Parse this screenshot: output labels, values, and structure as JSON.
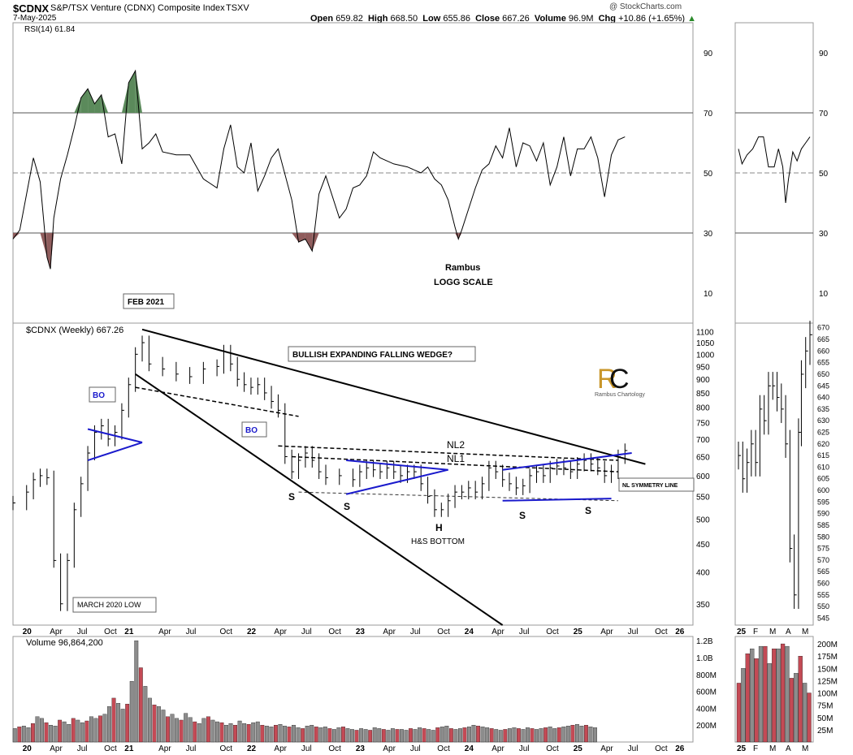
{
  "header": {
    "symbol": "$CDNX",
    "name": "S&P/TSX Venture (CDNX) Composite Index",
    "exchange": "TSXV",
    "date": "7-May-2025",
    "watermark": "@ StockCharts.com",
    "open_label": "Open",
    "open": "659.82",
    "high_label": "High",
    "high": "668.50",
    "low_label": "Low",
    "low": "655.86",
    "close_label": "Close",
    "close": "667.26",
    "volume_label": "Volume",
    "volume": "96.9M",
    "chg_label": "Chg",
    "chg": "+10.86 (+1.65%)",
    "chg_arrow": "▲"
  },
  "colors": {
    "up": "#000000",
    "down": "#000000",
    "overbought": "#5b8a5b",
    "oversold": "#8f5c5c",
    "trend": "#000000",
    "blue": "#1a1acc",
    "vol_up": "#8c8c8c",
    "vol_down": "#c44a55",
    "logo": "#c9962a"
  },
  "panels": {
    "rsi_label": "RSI(14) 61.84",
    "price_label": "$CDNX (Weekly) 667.26",
    "volume_label": "Volume 96,864,200"
  },
  "chart_data": [
    {
      "type": "line",
      "name": "rsi",
      "ylim": [
        0,
        100
      ],
      "yticks": [
        10,
        30,
        50,
        70,
        90
      ],
      "x_labels": [
        "20",
        "Apr",
        "Jul",
        "Oct",
        "21",
        "Apr",
        "Jul",
        "Oct",
        "22",
        "Apr",
        "Jul",
        "Oct",
        "23",
        "Apr",
        "Jul",
        "Oct",
        "24",
        "Apr",
        "Jul",
        "Oct",
        "25",
        "Apr",
        "Jul",
        "Oct",
        "26"
      ],
      "x_frac": [
        0.02,
        0.06,
        0.1,
        0.14,
        0.17,
        0.22,
        0.26,
        0.31,
        0.35,
        0.39,
        0.43,
        0.47,
        0.51,
        0.55,
        0.59,
        0.63,
        0.67,
        0.71,
        0.75,
        0.79,
        0.83,
        0.87,
        0.91,
        0.95,
        0.98
      ],
      "points": [
        [
          0.0,
          28
        ],
        [
          0.01,
          31
        ],
        [
          0.03,
          55
        ],
        [
          0.04,
          47
        ],
        [
          0.05,
          22
        ],
        [
          0.055,
          18
        ],
        [
          0.06,
          35
        ],
        [
          0.07,
          48
        ],
        [
          0.08,
          56
        ],
        [
          0.09,
          65
        ],
        [
          0.1,
          75
        ],
        [
          0.11,
          78
        ],
        [
          0.12,
          73
        ],
        [
          0.13,
          76
        ],
        [
          0.14,
          62
        ],
        [
          0.15,
          63
        ],
        [
          0.16,
          53
        ],
        [
          0.17,
          80
        ],
        [
          0.18,
          84
        ],
        [
          0.19,
          58
        ],
        [
          0.2,
          60
        ],
        [
          0.21,
          63
        ],
        [
          0.22,
          57
        ],
        [
          0.24,
          56
        ],
        [
          0.26,
          56
        ],
        [
          0.28,
          48
        ],
        [
          0.3,
          45
        ],
        [
          0.31,
          58
        ],
        [
          0.32,
          66
        ],
        [
          0.33,
          52
        ],
        [
          0.34,
          50
        ],
        [
          0.35,
          60
        ],
        [
          0.36,
          44
        ],
        [
          0.37,
          49
        ],
        [
          0.38,
          55
        ],
        [
          0.39,
          58
        ],
        [
          0.41,
          41
        ],
        [
          0.42,
          27
        ],
        [
          0.43,
          28
        ],
        [
          0.44,
          24
        ],
        [
          0.45,
          43
        ],
        [
          0.46,
          49
        ],
        [
          0.48,
          35
        ],
        [
          0.49,
          38
        ],
        [
          0.5,
          45
        ],
        [
          0.51,
          46
        ],
        [
          0.52,
          49
        ],
        [
          0.53,
          57
        ],
        [
          0.54,
          55
        ],
        [
          0.56,
          53
        ],
        [
          0.58,
          52
        ],
        [
          0.6,
          50
        ],
        [
          0.61,
          52
        ],
        [
          0.62,
          48
        ],
        [
          0.63,
          46
        ],
        [
          0.64,
          41
        ],
        [
          0.65,
          32
        ],
        [
          0.655,
          28
        ],
        [
          0.66,
          31
        ],
        [
          0.67,
          38
        ],
        [
          0.68,
          45
        ],
        [
          0.69,
          51
        ],
        [
          0.7,
          53
        ],
        [
          0.71,
          59
        ],
        [
          0.72,
          55
        ],
        [
          0.73,
          65
        ],
        [
          0.74,
          52
        ],
        [
          0.75,
          60
        ],
        [
          0.76,
          59
        ],
        [
          0.77,
          54
        ],
        [
          0.78,
          60
        ],
        [
          0.79,
          46
        ],
        [
          0.8,
          52
        ],
        [
          0.81,
          62
        ],
        [
          0.82,
          49
        ],
        [
          0.83,
          58
        ],
        [
          0.84,
          58
        ],
        [
          0.85,
          62
        ],
        [
          0.86,
          55
        ],
        [
          0.87,
          42
        ],
        [
          0.88,
          56
        ],
        [
          0.89,
          61
        ],
        [
          0.9,
          62
        ]
      ]
    },
    {
      "type": "bar",
      "name": "price",
      "scale": "log",
      "yticks": [
        350,
        400,
        450,
        500,
        550,
        600,
        650,
        700,
        750,
        800,
        850,
        900,
        950,
        1000,
        1050,
        1100
      ],
      "annotations": [
        "FEB 2021",
        "BO",
        "BO",
        "BULLISH EXPANDING FALLING WEDGE?",
        "MARCH 2020 LOW",
        "NL2",
        "NL1",
        "NL SYMMETRY LINE",
        "S",
        "S",
        "H",
        "S",
        "S",
        "H&S BOTTOM",
        "Rambus",
        "LOGG SCALE",
        "Rambus Chartology"
      ],
      "points": [
        [
          0.0,
          535
        ],
        [
          0.02,
          560
        ],
        [
          0.03,
          590
        ],
        [
          0.04,
          600
        ],
        [
          0.05,
          595
        ],
        [
          0.06,
          420
        ],
        [
          0.07,
          350
        ],
        [
          0.08,
          420
        ],
        [
          0.09,
          520
        ],
        [
          0.1,
          580
        ],
        [
          0.11,
          660
        ],
        [
          0.12,
          720
        ],
        [
          0.13,
          740
        ],
        [
          0.14,
          700
        ],
        [
          0.15,
          720
        ],
        [
          0.16,
          790
        ],
        [
          0.17,
          880
        ],
        [
          0.18,
          1000
        ],
        [
          0.19,
          1050
        ],
        [
          0.2,
          960
        ],
        [
          0.22,
          940
        ],
        [
          0.24,
          920
        ],
        [
          0.26,
          910
        ],
        [
          0.28,
          940
        ],
        [
          0.3,
          950
        ],
        [
          0.31,
          1010
        ],
        [
          0.32,
          960
        ],
        [
          0.33,
          900
        ],
        [
          0.34,
          880
        ],
        [
          0.35,
          870
        ],
        [
          0.36,
          880
        ],
        [
          0.37,
          850
        ],
        [
          0.38,
          820
        ],
        [
          0.39,
          790
        ],
        [
          0.4,
          650
        ],
        [
          0.41,
          610
        ],
        [
          0.42,
          640
        ],
        [
          0.43,
          660
        ],
        [
          0.44,
          640
        ],
        [
          0.45,
          610
        ],
        [
          0.46,
          595
        ],
        [
          0.48,
          600
        ],
        [
          0.5,
          590
        ],
        [
          0.51,
          610
        ],
        [
          0.52,
          620
        ],
        [
          0.53,
          615
        ],
        [
          0.54,
          610
        ],
        [
          0.55,
          620
        ],
        [
          0.56,
          610
        ],
        [
          0.57,
          600
        ],
        [
          0.58,
          610
        ],
        [
          0.59,
          610
        ],
        [
          0.6,
          580
        ],
        [
          0.61,
          550
        ],
        [
          0.62,
          520
        ],
        [
          0.63,
          520
        ],
        [
          0.64,
          540
        ],
        [
          0.65,
          560
        ],
        [
          0.66,
          560
        ],
        [
          0.67,
          570
        ],
        [
          0.68,
          560
        ],
        [
          0.69,
          580
        ],
        [
          0.7,
          620
        ],
        [
          0.71,
          610
        ],
        [
          0.72,
          590
        ],
        [
          0.73,
          580
        ],
        [
          0.74,
          570
        ],
        [
          0.75,
          575
        ],
        [
          0.76,
          600
        ],
        [
          0.77,
          610
        ],
        [
          0.78,
          600
        ],
        [
          0.79,
          620
        ],
        [
          0.8,
          625
        ],
        [
          0.81,
          620
        ],
        [
          0.82,
          610
        ],
        [
          0.83,
          630
        ],
        [
          0.84,
          640
        ],
        [
          0.85,
          630
        ],
        [
          0.86,
          620
        ],
        [
          0.87,
          600
        ],
        [
          0.88,
          610
        ],
        [
          0.89,
          650
        ],
        [
          0.9,
          667
        ]
      ]
    },
    {
      "type": "bar",
      "name": "volume",
      "ylim": [
        0,
        1250
      ],
      "yticks": [
        "200M",
        "400M",
        "600M",
        "800M",
        "1.0B",
        "1.2B"
      ],
      "values": [
        160,
        180,
        190,
        170,
        220,
        300,
        280,
        230,
        200,
        190,
        260,
        240,
        210,
        280,
        260,
        230,
        250,
        300,
        280,
        310,
        330,
        420,
        520,
        460,
        390,
        450,
        720,
        1200,
        880,
        660,
        520,
        440,
        420,
        380,
        300,
        330,
        280,
        260,
        340,
        290,
        240,
        220,
        280,
        300,
        260,
        240,
        230,
        200,
        220,
        200,
        250,
        220,
        210,
        230,
        240,
        200,
        190,
        180,
        200,
        210,
        190,
        180,
        200,
        170,
        160,
        190,
        200,
        180,
        170,
        180,
        160,
        150,
        170,
        180,
        160,
        150,
        140,
        160,
        150,
        140,
        170,
        160,
        150,
        140,
        160,
        150,
        150,
        140,
        160,
        150,
        170,
        160,
        150,
        140,
        170,
        180,
        190,
        160,
        150,
        160,
        170,
        180,
        200,
        190,
        180,
        170,
        160,
        150,
        140,
        150,
        160,
        170,
        160,
        150,
        170,
        160,
        150,
        160,
        170,
        180,
        160,
        170,
        180,
        190,
        200,
        210,
        190,
        200,
        180,
        170
      ]
    },
    {
      "type": "bar",
      "name": "price-inset",
      "yticks": [
        "545",
        "550",
        "555",
        "560",
        "565",
        "570",
        "575",
        "580",
        "585",
        "590",
        "595",
        "600",
        "605",
        "610",
        "615",
        "620",
        "625",
        "630",
        "635",
        "640",
        "645",
        "650",
        "655",
        "660",
        "665",
        "670"
      ],
      "x_labels": [
        "25",
        "F",
        "M",
        "A",
        "M"
      ],
      "points": [
        [
          0.0,
          615
        ],
        [
          0.06,
          605
        ],
        [
          0.12,
          612
        ],
        [
          0.18,
          620
        ],
        [
          0.24,
          612
        ],
        [
          0.3,
          635
        ],
        [
          0.36,
          630
        ],
        [
          0.42,
          645
        ],
        [
          0.48,
          645
        ],
        [
          0.54,
          640
        ],
        [
          0.6,
          635
        ],
        [
          0.66,
          620
        ],
        [
          0.72,
          575
        ],
        [
          0.78,
          555
        ],
        [
          0.84,
          625
        ],
        [
          0.88,
          650
        ],
        [
          0.94,
          660
        ],
        [
          1.0,
          667
        ]
      ]
    },
    {
      "type": "line",
      "name": "rsi-inset",
      "ylim": [
        0,
        100
      ],
      "yticks": [
        10,
        30,
        50,
        70,
        90
      ],
      "points": [
        [
          0.0,
          58
        ],
        [
          0.05,
          53
        ],
        [
          0.12,
          56
        ],
        [
          0.2,
          58
        ],
        [
          0.28,
          62
        ],
        [
          0.35,
          62
        ],
        [
          0.42,
          52
        ],
        [
          0.5,
          52
        ],
        [
          0.56,
          58
        ],
        [
          0.62,
          52
        ],
        [
          0.66,
          40
        ],
        [
          0.7,
          48
        ],
        [
          0.76,
          57
        ],
        [
          0.82,
          54
        ],
        [
          0.88,
          58
        ],
        [
          0.94,
          60
        ],
        [
          1.0,
          62
        ]
      ]
    },
    {
      "type": "bar",
      "name": "volume-inset",
      "yticks": [
        "25M",
        "50M",
        "75M",
        "100M",
        "125M",
        "150M",
        "175M",
        "200M"
      ],
      "values": [
        120,
        150,
        180,
        190,
        170,
        195,
        195,
        160,
        190,
        190,
        200,
        195,
        130,
        140,
        175,
        120,
        100
      ]
    }
  ]
}
